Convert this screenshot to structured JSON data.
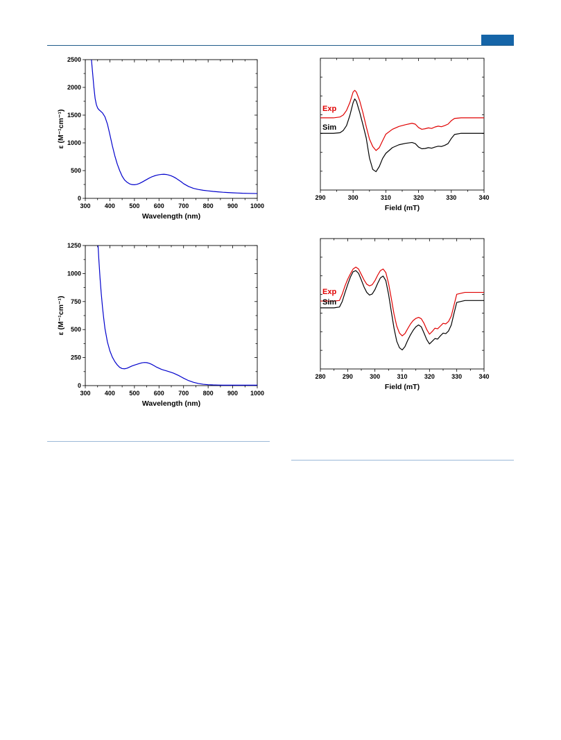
{
  "header": {
    "accent_color": "#1565a8"
  },
  "chart_data": [
    {
      "type": "line",
      "xlabel": "Wavelength (nm)",
      "ylabel": "ε (M⁻¹cm⁻¹)",
      "xlim": [
        300,
        1000
      ],
      "ylim": [
        0,
        2500
      ],
      "xticks": [
        300,
        400,
        500,
        600,
        700,
        800,
        900,
        1000
      ],
      "yticks": [
        0,
        500,
        1000,
        1500,
        2000,
        2500
      ],
      "series": [
        {
          "color": "#0000cc",
          "x": [
            325,
            330,
            335,
            340,
            345,
            350,
            355,
            360,
            370,
            380,
            390,
            400,
            410,
            420,
            430,
            440,
            450,
            460,
            470,
            480,
            490,
            500,
            510,
            520,
            530,
            540,
            550,
            560,
            570,
            580,
            590,
            600,
            610,
            620,
            630,
            640,
            650,
            660,
            670,
            680,
            690,
            700,
            720,
            740,
            760,
            780,
            800,
            820,
            840,
            860,
            880,
            900,
            920,
            940,
            960,
            980,
            1000
          ],
          "y": [
            2500,
            2250,
            2000,
            1800,
            1690,
            1630,
            1600,
            1580,
            1540,
            1470,
            1340,
            1150,
            950,
            770,
            620,
            500,
            400,
            330,
            290,
            262,
            248,
            245,
            252,
            268,
            290,
            315,
            340,
            365,
            386,
            403,
            416,
            426,
            432,
            434,
            430,
            420,
            405,
            385,
            360,
            330,
            300,
            265,
            215,
            180,
            160,
            145,
            135,
            125,
            117,
            110,
            105,
            100,
            96,
            92,
            90,
            88,
            87
          ]
        }
      ]
    },
    {
      "type": "line",
      "xlabel": "Wavelength (nm)",
      "ylabel": "ε (M⁻¹cm⁻¹)",
      "xlim": [
        300,
        1000
      ],
      "ylim": [
        0,
        1250
      ],
      "xticks": [
        300,
        400,
        500,
        600,
        700,
        800,
        900,
        1000
      ],
      "yticks": [
        0,
        250,
        500,
        750,
        1000,
        1250
      ],
      "series": [
        {
          "color": "#0000cc",
          "x": [
            352,
            355,
            360,
            365,
            370,
            375,
            380,
            390,
            400,
            410,
            420,
            430,
            440,
            450,
            460,
            470,
            480,
            490,
            500,
            510,
            520,
            530,
            540,
            550,
            560,
            570,
            580,
            590,
            600,
            610,
            620,
            630,
            640,
            650,
            660,
            670,
            680,
            690,
            700,
            720,
            740,
            760,
            780,
            800,
            820,
            840,
            860,
            880,
            900,
            920,
            940,
            960,
            980,
            1000
          ],
          "y": [
            1250,
            1130,
            960,
            820,
            700,
            600,
            510,
            390,
            310,
            255,
            215,
            185,
            163,
            152,
            150,
            155,
            165,
            175,
            183,
            190,
            197,
            203,
            206,
            205,
            199,
            190,
            178,
            165,
            155,
            145,
            138,
            132,
            125,
            118,
            110,
            100,
            90,
            78,
            66,
            45,
            30,
            19,
            12,
            8,
            6,
            5,
            4,
            4,
            4,
            4,
            4,
            4,
            4,
            4
          ]
        }
      ]
    },
    {
      "type": "line",
      "xlabel": "Field (mT)",
      "ylabel": "",
      "xlim": [
        290,
        340
      ],
      "xticks": [
        290,
        300,
        310,
        320,
        330,
        340
      ],
      "yaxis": "arbitrary",
      "legend": "left",
      "series": [
        {
          "name": "Exp",
          "color": "#e00000",
          "x": [
            290,
            294,
            296,
            297,
            298,
            299,
            300,
            300.5,
            301,
            302,
            303,
            304,
            305,
            306,
            307,
            308,
            309,
            310,
            312,
            314,
            316,
            318,
            319,
            320,
            321,
            322,
            323,
            324,
            325,
            326,
            327,
            328,
            329,
            330,
            331,
            333,
            336,
            340
          ],
          "y": [
            1.52,
            1.52,
            1.55,
            1.62,
            1.78,
            2.05,
            2.42,
            2.48,
            2.42,
            2.12,
            1.7,
            1.22,
            0.78,
            0.52,
            0.38,
            0.48,
            0.72,
            0.95,
            1.12,
            1.22,
            1.28,
            1.33,
            1.3,
            1.18,
            1.12,
            1.14,
            1.17,
            1.15,
            1.2,
            1.23,
            1.21,
            1.25,
            1.3,
            1.42,
            1.5,
            1.52,
            1.52,
            1.52
          ]
        },
        {
          "name": "Sim",
          "color": "#000000",
          "x": [
            290,
            294,
            296,
            297,
            298,
            299,
            300,
            300.5,
            301,
            302,
            303,
            304,
            305,
            306,
            307,
            308,
            309,
            310,
            312,
            314,
            316,
            318,
            319,
            320,
            321,
            322,
            323,
            324,
            325,
            326,
            327,
            328,
            329,
            330,
            331,
            333,
            336,
            340
          ],
          "y": [
            0.98,
            0.98,
            1.0,
            1.08,
            1.25,
            1.6,
            2.05,
            2.18,
            2.1,
            1.72,
            1.28,
            0.82,
            0.12,
            -0.28,
            -0.36,
            -0.18,
            0.1,
            0.28,
            0.48,
            0.58,
            0.63,
            0.66,
            0.62,
            0.5,
            0.44,
            0.45,
            0.48,
            0.46,
            0.5,
            0.53,
            0.52,
            0.56,
            0.62,
            0.8,
            0.94,
            0.98,
            0.98,
            0.98
          ]
        }
      ]
    },
    {
      "type": "line",
      "xlabel": "Field (mT)",
      "ylabel": "",
      "xlim": [
        280,
        340
      ],
      "xticks": [
        280,
        290,
        300,
        310,
        320,
        330,
        340
      ],
      "yaxis": "arbitrary",
      "legend": "left",
      "series": [
        {
          "name": "Exp",
          "color": "#e00000",
          "x": [
            280,
            285,
            287,
            288,
            289,
            290,
            291,
            292,
            293,
            294,
            295,
            296,
            297,
            298,
            299,
            300,
            301,
            302,
            303,
            304,
            305,
            306,
            307,
            308,
            309,
            310,
            311,
            312,
            313,
            314,
            315,
            316,
            317,
            318,
            319,
            320,
            321,
            322,
            323,
            324,
            325,
            326,
            327,
            328,
            329,
            330,
            333,
            340
          ],
          "y": [
            1.3,
            1.3,
            1.32,
            1.55,
            1.85,
            2.1,
            2.3,
            2.48,
            2.55,
            2.48,
            2.28,
            2.08,
            1.92,
            1.86,
            1.9,
            2.05,
            2.25,
            2.42,
            2.48,
            2.35,
            1.95,
            1.4,
            0.82,
            0.38,
            0.12,
            0.02,
            0.1,
            0.28,
            0.45,
            0.58,
            0.66,
            0.7,
            0.65,
            0.48,
            0.25,
            0.08,
            0.18,
            0.3,
            0.28,
            0.38,
            0.48,
            0.46,
            0.55,
            0.75,
            1.15,
            1.55,
            1.62,
            1.62
          ]
        },
        {
          "name": "Sim",
          "color": "#000000",
          "x": [
            280,
            285,
            287,
            288,
            289,
            290,
            291,
            292,
            293,
            294,
            295,
            296,
            297,
            298,
            299,
            300,
            301,
            302,
            303,
            304,
            305,
            306,
            307,
            308,
            309,
            310,
            311,
            312,
            313,
            314,
            315,
            316,
            317,
            318,
            319,
            320,
            321,
            322,
            323,
            324,
            325,
            326,
            327,
            328,
            329,
            330,
            333,
            340
          ],
          "y": [
            1.05,
            1.05,
            1.08,
            1.28,
            1.6,
            1.9,
            2.18,
            2.38,
            2.42,
            2.32,
            2.08,
            1.82,
            1.62,
            1.52,
            1.56,
            1.72,
            1.95,
            2.15,
            2.22,
            2.05,
            1.55,
            0.92,
            0.3,
            -0.18,
            -0.42,
            -0.5,
            -0.38,
            -0.15,
            0.05,
            0.22,
            0.35,
            0.42,
            0.35,
            0.12,
            -0.12,
            -0.28,
            -0.18,
            -0.08,
            -0.1,
            0.02,
            0.12,
            0.1,
            0.2,
            0.42,
            0.85,
            1.25,
            1.32,
            1.32
          ]
        }
      ]
    }
  ]
}
